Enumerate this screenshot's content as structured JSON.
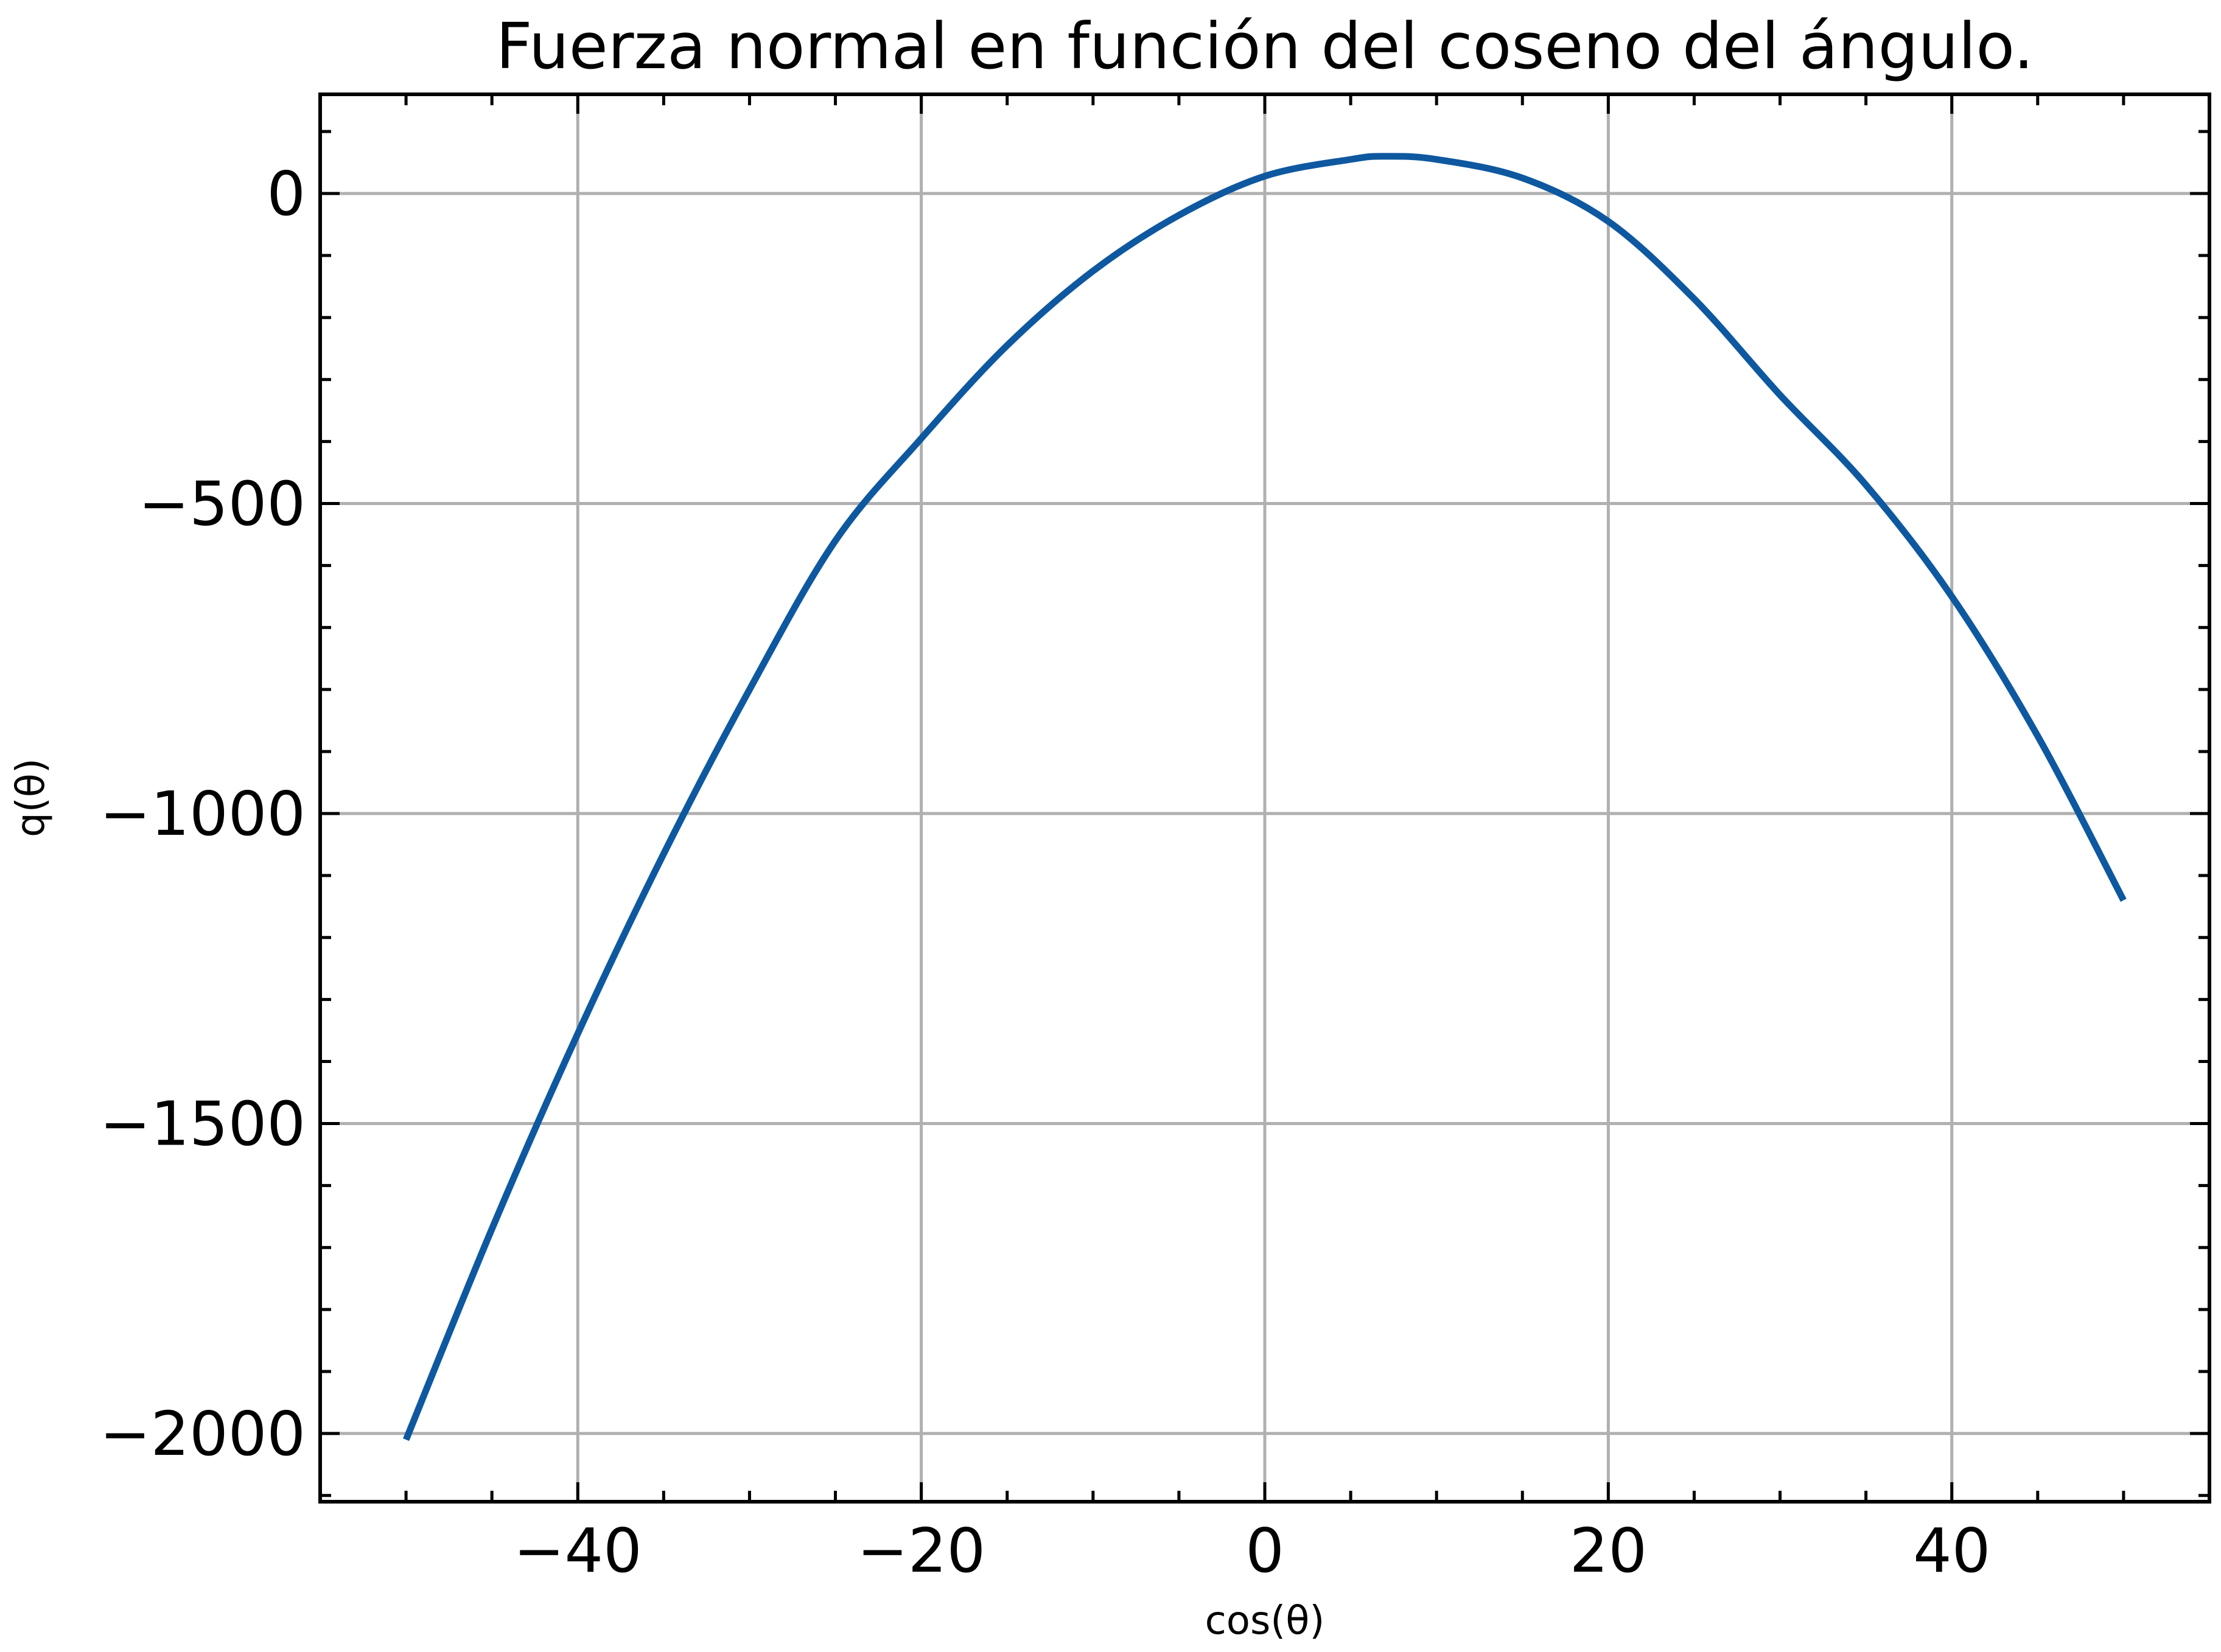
{
  "chart_data": {
    "type": "line",
    "title": "Fuerza normal en función del coseno del ángulo.",
    "xlabel": "cos(θ)",
    "ylabel": "q(θ)",
    "xlim": [
      -55,
      55
    ],
    "ylim": [
      -2110,
      160
    ],
    "grid": true,
    "x_ticks": [
      -40,
      -20,
      0,
      20,
      40
    ],
    "y_ticks": [
      0,
      -500,
      -1000,
      -1500,
      -2000
    ],
    "x_tick_labels": [
      "−40",
      "−20",
      "0",
      "20",
      "40"
    ],
    "y_tick_labels": [
      "0",
      "−500",
      "−1000",
      "−1500",
      "−2000"
    ],
    "x_minor_step": 5,
    "y_minor_step": 100,
    "line_color": "#0e58a0",
    "series": [
      {
        "x": [
          -50,
          -45,
          -40,
          -35,
          -30,
          -25,
          -20,
          -15,
          -10,
          -5,
          0,
          5,
          7,
          10,
          15,
          20,
          25,
          30,
          35,
          40,
          45,
          50
        ],
        "y": [
          -2010,
          -1670,
          -1355,
          -1065,
          -800,
          -560,
          -395,
          -245,
          -125,
          -35,
          28,
          55,
          60,
          55,
          25,
          -45,
          -170,
          -325,
          -470,
          -650,
          -875,
          -1140
        ]
      }
    ]
  }
}
